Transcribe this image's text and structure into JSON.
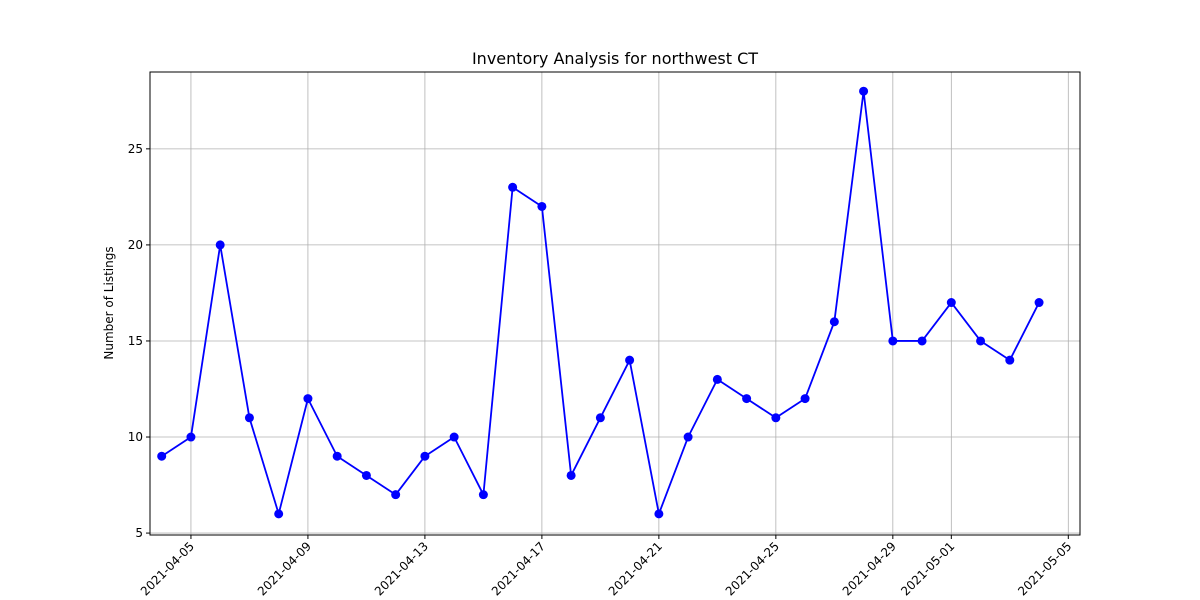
{
  "chart_data": {
    "type": "line",
    "title": "Inventory Analysis for northwest CT",
    "xlabel": "",
    "ylabel": "Number of Listings",
    "x": [
      "2021-04-04",
      "2021-04-05",
      "2021-04-06",
      "2021-04-07",
      "2021-04-08",
      "2021-04-09",
      "2021-04-10",
      "2021-04-11",
      "2021-04-12",
      "2021-04-13",
      "2021-04-14",
      "2021-04-15",
      "2021-04-16",
      "2021-04-17",
      "2021-04-18",
      "2021-04-19",
      "2021-04-20",
      "2021-04-21",
      "2021-04-22",
      "2021-04-23",
      "2021-04-24",
      "2021-04-25",
      "2021-04-26",
      "2021-04-27",
      "2021-04-28",
      "2021-04-29",
      "2021-04-30",
      "2021-05-01",
      "2021-05-02",
      "2021-05-03",
      "2021-05-04"
    ],
    "series": [
      {
        "values": [
          9,
          10,
          20,
          11,
          6,
          12,
          9,
          8,
          7,
          9,
          10,
          7,
          23,
          22,
          8,
          11,
          14,
          6,
          10,
          13,
          12,
          11,
          12,
          16,
          28,
          15,
          15,
          17,
          15,
          14,
          17
        ],
        "color": "#0000ff",
        "marker": "circle"
      }
    ],
    "x_ticks": [
      "2021-04-05",
      "2021-04-09",
      "2021-04-13",
      "2021-04-17",
      "2021-04-21",
      "2021-04-25",
      "2021-04-29",
      "2021-05-01",
      "2021-05-05"
    ],
    "y_ticks": [
      5,
      10,
      15,
      20,
      25
    ],
    "xlim": [
      "2021-04-03",
      "2021-05-05"
    ],
    "ylim": [
      5,
      29
    ],
    "grid": true,
    "legend": "none"
  }
}
